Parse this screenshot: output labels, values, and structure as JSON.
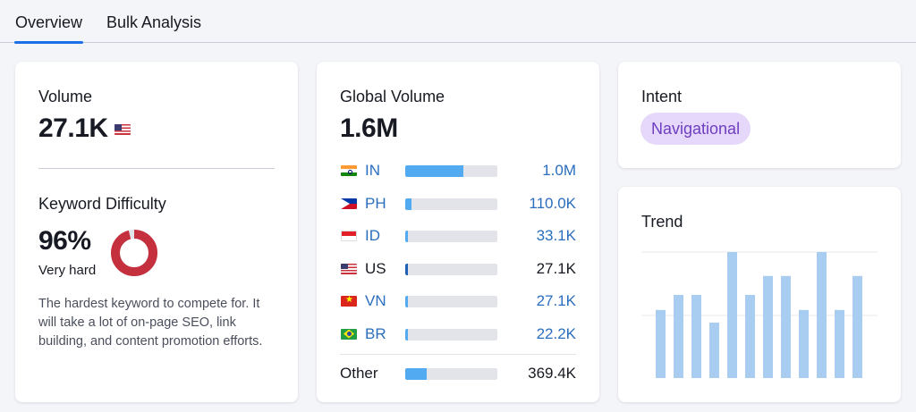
{
  "tabs": [
    {
      "label": "Overview",
      "active": true
    },
    {
      "label": "Bulk Analysis",
      "active": false
    }
  ],
  "volume": {
    "label": "Volume",
    "value": "27.1K",
    "flag_icon": "us-flag-icon"
  },
  "keyword_difficulty": {
    "label": "Keyword Difficulty",
    "value": "96%",
    "percent": 96,
    "level": "Very hard",
    "description": "The hardest keyword to compete for. It will take a lot of on-page SEO, link building, and content promotion efforts.",
    "color": "#c4303e"
  },
  "global_volume": {
    "label": "Global Volume",
    "value": "1.6M",
    "countries": [
      {
        "code": "IN",
        "flag": "in-flag-icon",
        "value": "1.0M",
        "fill": 0.63,
        "link": true
      },
      {
        "code": "PH",
        "flag": "ph-flag-icon",
        "value": "110.0K",
        "fill": 0.07,
        "link": true
      },
      {
        "code": "ID",
        "flag": "id-flag-icon",
        "value": "33.1K",
        "fill": 0.03,
        "link": true
      },
      {
        "code": "US",
        "flag": "us-flag-icon",
        "value": "27.1K",
        "fill": 0.03,
        "link": false
      },
      {
        "code": "VN",
        "flag": "vn-flag-icon",
        "value": "27.1K",
        "fill": 0.03,
        "link": true
      },
      {
        "code": "BR",
        "flag": "br-flag-icon",
        "value": "22.2K",
        "fill": 0.03,
        "link": true
      }
    ],
    "other": {
      "label": "Other",
      "value": "369.4K",
      "fill": 0.23
    }
  },
  "intent": {
    "label": "Intent",
    "badge": "Navigational",
    "badge_bg": "#e6d8fb",
    "badge_color": "#6e3ec0"
  },
  "trend": {
    "label": "Trend",
    "bar_color": "#a8cdf0",
    "values": [
      0.54,
      0.66,
      0.66,
      0.44,
      1.0,
      0.66,
      0.81,
      0.81,
      0.54,
      1.0,
      0.54,
      0.81
    ]
  }
}
